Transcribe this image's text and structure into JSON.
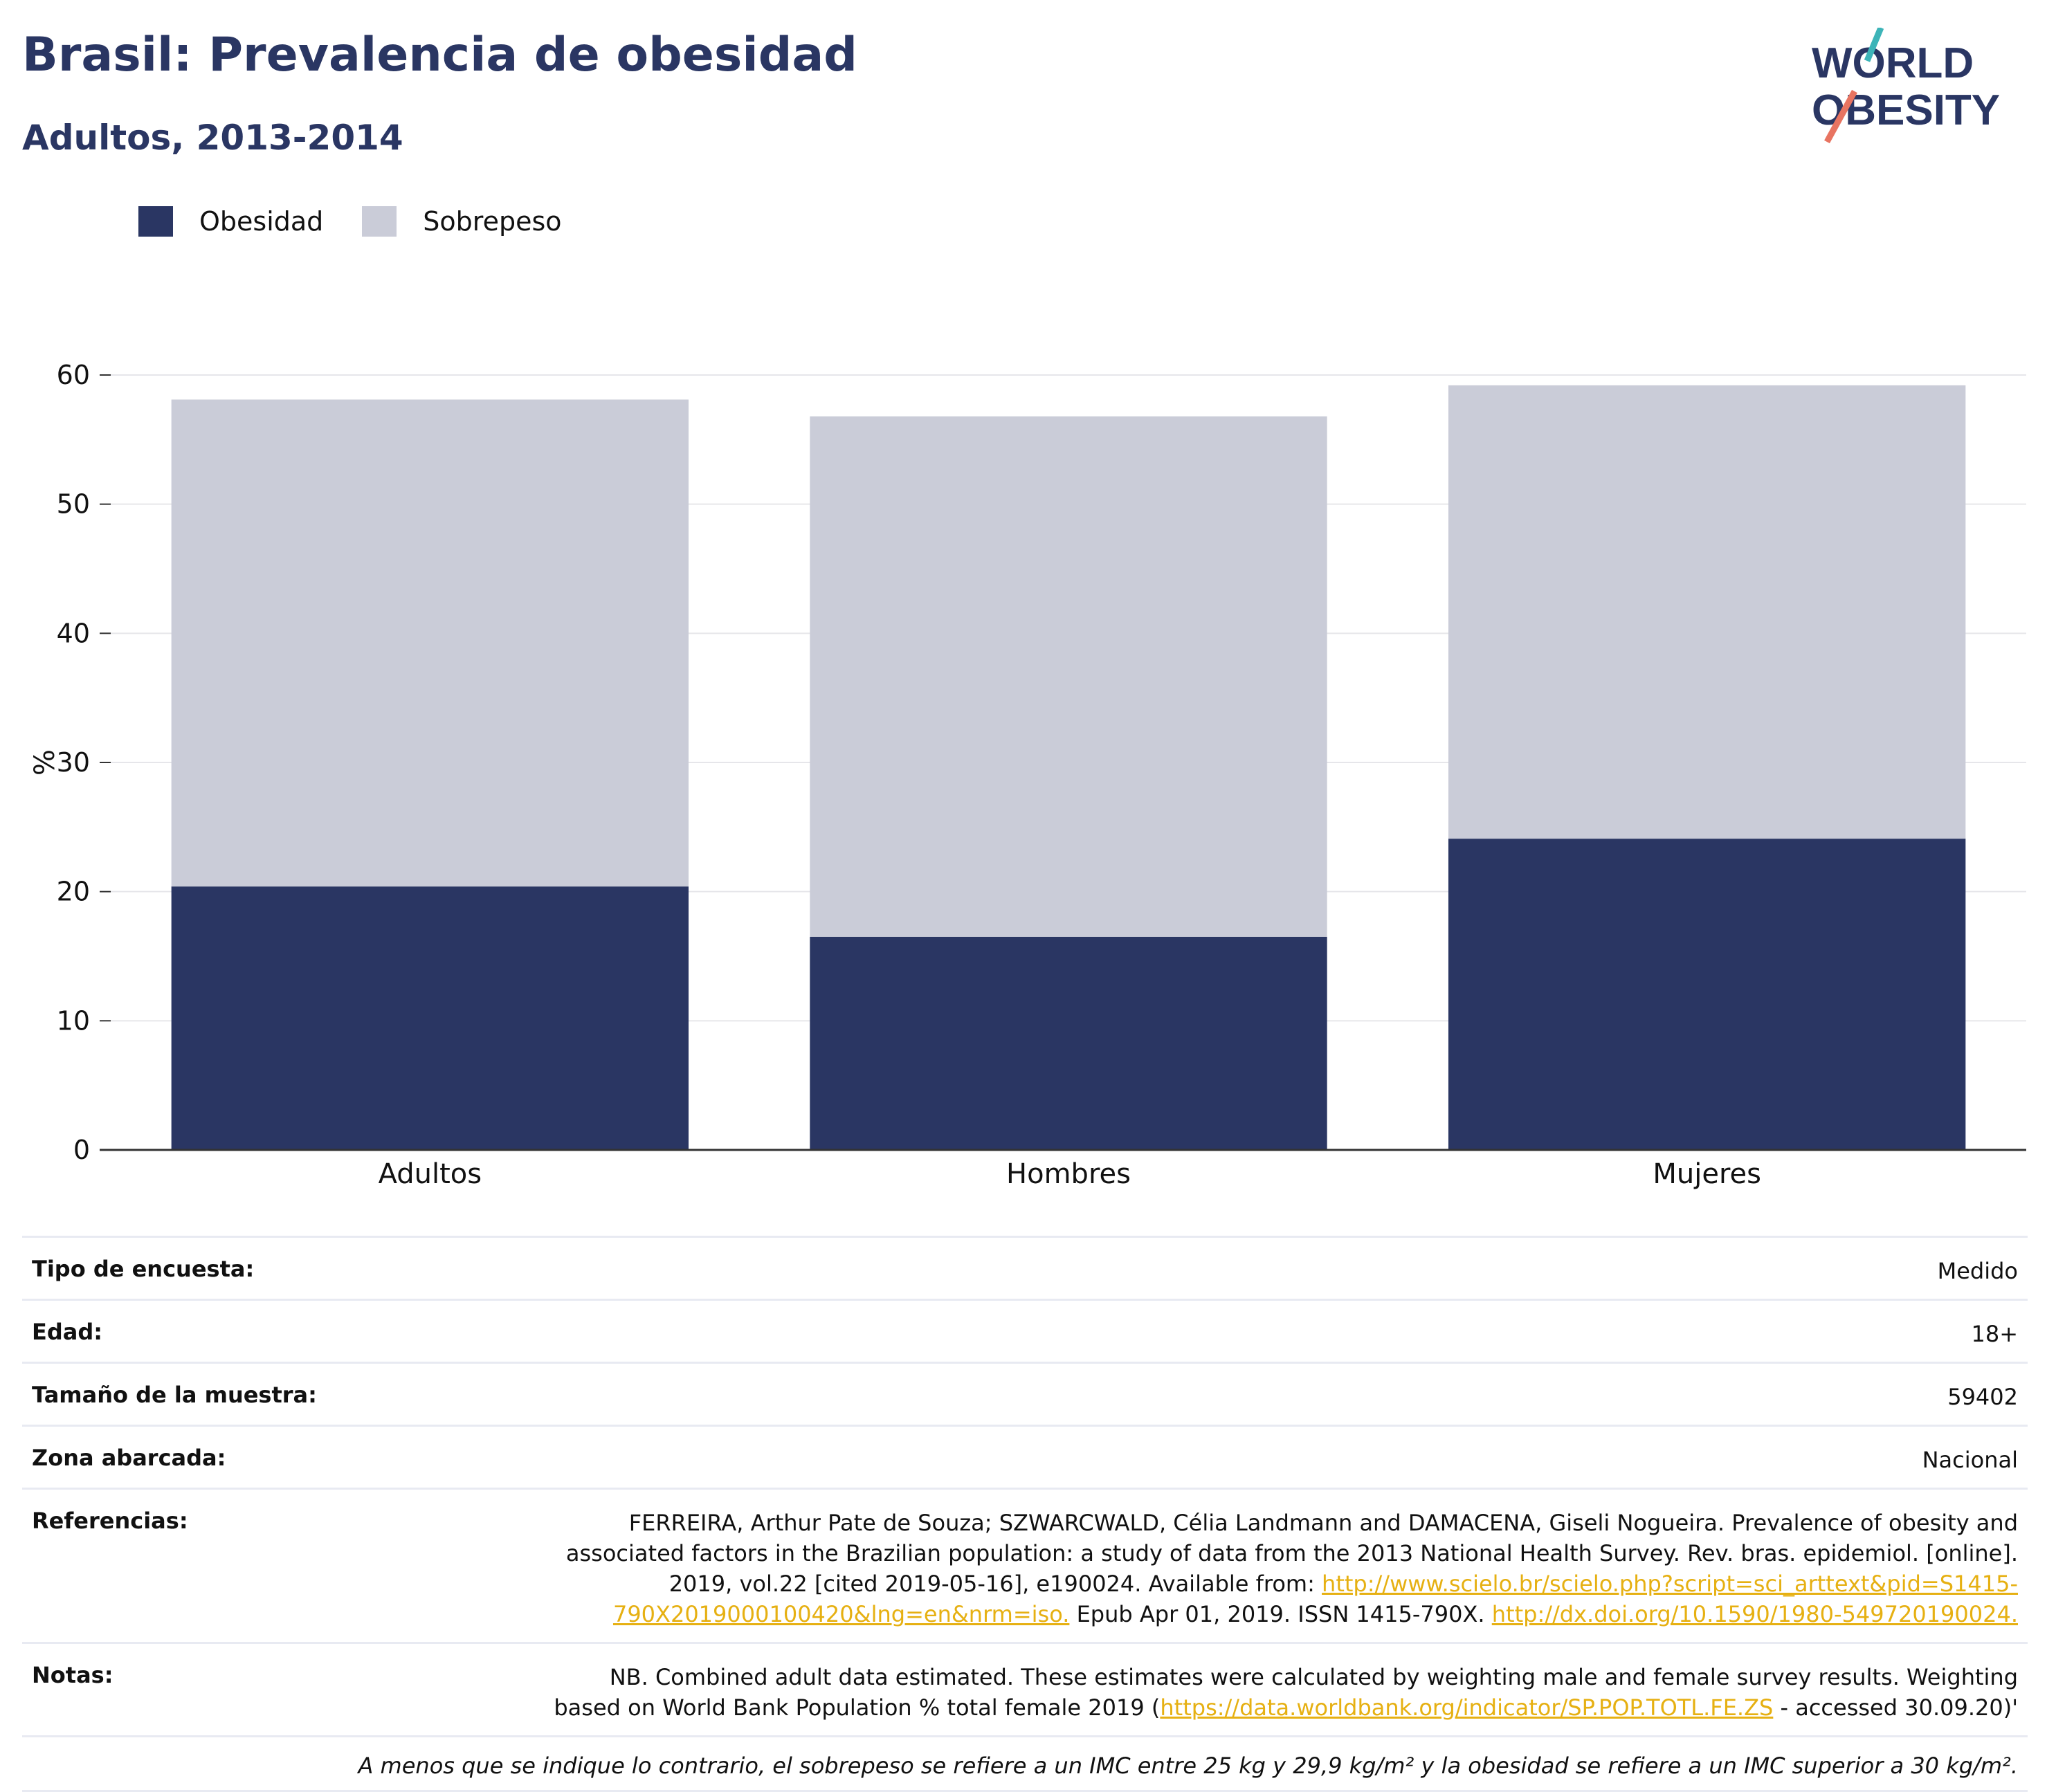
{
  "header": {
    "title": "Brasil: Prevalencia de obesidad",
    "subtitle": "Adultos, 2013-2014",
    "logo_line1": "WORLD",
    "logo_line2": "OBESITY"
  },
  "colors": {
    "obesity": "#2a3663",
    "overweight": "#caccd8",
    "title": "#2a3663",
    "link": "#e6b012",
    "logo_teal": "#3db4b8",
    "logo_coral": "#e87461"
  },
  "chart_data": {
    "type": "bar",
    "stacked": true,
    "categories": [
      "Adultos",
      "Hombres",
      "Mujeres"
    ],
    "series": [
      {
        "name": "Obesidad",
        "values": [
          20.4,
          16.5,
          24.1
        ]
      },
      {
        "name": "Sobrepeso",
        "values": [
          37.7,
          40.3,
          35.1
        ]
      }
    ],
    "ylabel": "%",
    "ylim": [
      0,
      60
    ],
    "yticks": [
      0,
      10,
      20,
      30,
      40,
      50,
      60
    ],
    "grid": true,
    "legend_position": "top-left"
  },
  "meta": {
    "rows": [
      {
        "label": "Tipo de encuesta:",
        "value": "Medido"
      },
      {
        "label": "Edad:",
        "value": "18+"
      },
      {
        "label": "Tamaño de la muestra:",
        "value": "59402"
      },
      {
        "label": "Zona abarcada:",
        "value": "Nacional"
      }
    ],
    "references_label": "Referencias:",
    "references_text1": "FERREIRA, Arthur Pate de Souza; SZWARCWALD, Célia Landmann and DAMACENA, Giseli Nogueira. Prevalence of obesity and associated factors in the Brazilian population: a study of data from the 2013 National Health Survey. Rev. bras. epidemiol. [online]. 2019, vol.22 [cited 2019-05-16], e190024. Available from: ",
    "references_link1": "http://www.scielo.br/scielo.php?script=sci_arttext&pid=S1415-790X2019000100420&lng=en&nrm=iso.",
    "references_text2": " Epub Apr 01, 2019. ISSN 1415-790X. ",
    "references_link2": "http://dx.doi.org/10.1590/1980-549720190024.",
    "notes_label": "Notas:",
    "notes_text1": "NB. Combined adult data estimated. These estimates were calculated by weighting male and female survey results. Weighting based on World Bank Population % total female 2019 (",
    "notes_link": "https://data.worldbank.org/indicator/SP.POP.TOTL.FE.ZS",
    "notes_text2": " - accessed 30.09.20)'",
    "footnote": "A menos que se indique lo contrario, el sobrepeso se refiere a un IMC entre 25 kg y 29,9 kg/m² y la obesidad se refiere a un IMC superior a 30 kg/m²."
  }
}
